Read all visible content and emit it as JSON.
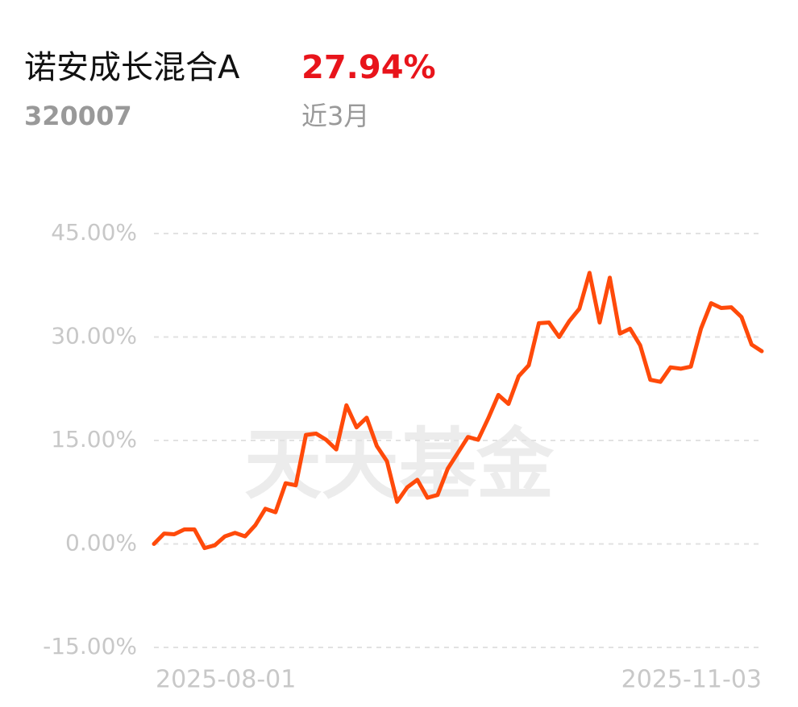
{
  "header": {
    "name": "诺安成长混合A",
    "return": "27.94%",
    "code": "320007",
    "period": "近3月"
  },
  "watermark": "天天基金",
  "chart_data": {
    "type": "line",
    "categories": [
      "2025-08-01",
      null,
      null,
      null,
      null,
      null,
      null,
      null,
      null,
      null,
      null,
      null,
      null,
      null,
      null,
      null,
      null,
      null,
      null,
      null,
      null,
      null,
      null,
      null,
      null,
      null,
      null,
      null,
      null,
      null,
      null,
      null,
      null,
      null,
      null,
      null,
      null,
      null,
      null,
      null,
      null,
      null,
      null,
      null,
      null,
      null,
      null,
      null,
      null,
      null,
      null,
      null,
      null,
      null,
      null,
      null,
      null,
      null,
      null,
      null,
      "2025-11-03"
    ],
    "values": [
      0,
      1.5,
      1.4,
      2.1,
      2.1,
      -0.6,
      -0.2,
      1.1,
      1.6,
      1.1,
      2.7,
      5.1,
      4.6,
      8.8,
      8.5,
      15.8,
      16.0,
      15.1,
      13.7,
      20.1,
      16.9,
      18.3,
      14.2,
      12.0,
      6.1,
      8.2,
      9.3,
      6.7,
      7.1,
      10.9,
      13.2,
      15.5,
      15.1,
      18.2,
      21.6,
      20.3,
      24.3,
      25.9,
      32.0,
      32.1,
      30.0,
      32.3,
      34.1,
      39.3,
      32.1,
      38.6,
      30.5,
      31.2,
      28.8,
      23.8,
      23.5,
      25.6,
      25.4,
      25.7,
      31.2,
      34.9,
      34.2,
      34.3,
      32.9,
      28.9,
      27.94
    ],
    "color": "#ff4a0a",
    "ylim": [
      -15,
      45
    ],
    "yticks": [
      {
        "value": -15,
        "label": "-15.00%"
      },
      {
        "value": 0,
        "label": "0.00%"
      },
      {
        "value": 15,
        "label": "15.00%"
      },
      {
        "value": 30,
        "label": "30.00%"
      },
      {
        "value": 45,
        "label": "45.00%"
      }
    ],
    "grid": true
  }
}
